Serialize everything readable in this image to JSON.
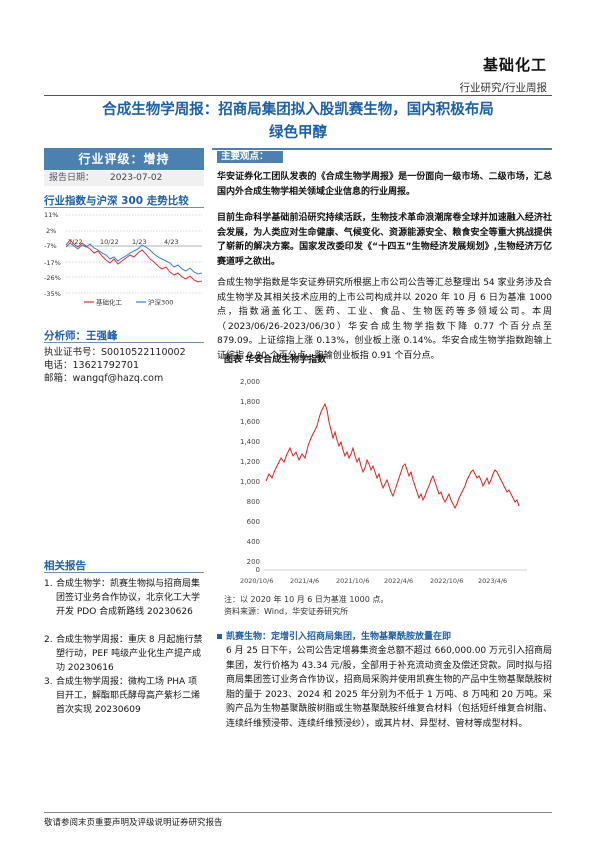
{
  "header": {
    "sector": "基础化工",
    "category": "行业研究/行业周报"
  },
  "title_line1": "合成生物学周报：招商局集团拟入股凯赛生物，国内积极布局",
  "title_line2": "绿色甲醇",
  "rating": "行业评级：增持",
  "report_date_label": "报告日期：",
  "report_date": "2023-07-02",
  "index_chart": {
    "title": "行业指数与沪深 300 走势比较",
    "yticks": [
      "11%",
      "2%",
      "-7%",
      "-17%",
      "-26%",
      "-35%"
    ],
    "xticks": [
      "7/22",
      "10/22",
      "1/23",
      "4/23"
    ],
    "legend": [
      "基础化工",
      "沪深300"
    ],
    "colors": {
      "sector": "#e03030",
      "hs300": "#3a7fd0"
    }
  },
  "analyst": {
    "title": "分析师：王强峰",
    "cert_label": "执业证书号：",
    "cert": "S0010522110002",
    "phone_label": "电话：",
    "phone": "13621792701",
    "email_label": "邮箱：",
    "email": "wangqf@hazq.com"
  },
  "related": {
    "title": "相关报告",
    "items": [
      {
        "no": "1.",
        "text": "合成生物学：凯赛生物拟与招商局集团签订业务合作协议，北京化工大学开发 PDO 合成新路线 20230626"
      },
      {
        "no": "2.",
        "text": "合成生物学周报：重庆 8 月起施行禁塑行动，PEF 吨级产业化生产提产成功 20230616"
      },
      {
        "no": "3.",
        "text": "合成生物学周报：微构工场 PHA 项目开工，解酯耶氏酵母高产紫杉二烯首次实现 20230609"
      }
    ]
  },
  "main_points_label": "主要观点：",
  "para1": "华安证券化工团队发表的《合成生物学周报》是一份面向一级市场、二级市场，汇总国内外合成生物学相关领域企业信息的行业周报。",
  "para2": "目前生命科学基础前沿研究持续活跃，生物技术革命浪潮席卷全球并加速融入经济社会发展，为人类应对生命健康、气候变化、资源能源安全、粮食安全等重大挑战提供了崭新的解决方案。国家发改委印发《“十四五”生物经济发展规划》,生物经济万亿赛道呼之欲出。",
  "para3": "合成生物学指数是华安证券研究所根据上市公司公告等汇总整理出 54 家业务涉及合成生物学及其相关技术应用的上市公司构成并以 2020 年 10 月 6 日为基准 1000 点，指数涵盖化工、医药、工业、食品、生物医药等多领域公司。本周（2023/06/26-2023/06/30）华安合成生物学指数下降 0.77 个百分点至 879.09。上证综指上涨 0.13%，创业板上涨 0.14%。华安合成生物学指数跑输上证综指 0.90 个百分点，跑输创业板指 0.91 个百分点。",
  "figure": {
    "title": "图表 华安合成生物学指数",
    "yticks": [
      "2,000",
      "1,800",
      "1,600",
      "1,400",
      "1,200",
      "1,000",
      "800",
      "600",
      "400",
      "200",
      "0"
    ],
    "xticks": [
      "2020/10/6",
      "2021/4/6",
      "2021/10/6",
      "2022/4/6",
      "2022/10/6",
      "2023/4/6"
    ],
    "note": "注：以 2020 年 10 月 6 日为基准 1000 点。",
    "source": "资料来源：Wind，华安证券研究所",
    "color": "#e02020"
  },
  "bullet": {
    "title": "凯赛生物：定增引入招商局集团，生物基聚酰胺放量在即",
    "text": "6 月 25 日下午，公司公告定增募集资金总额不超过 660,000.00 万元引入招商局集团，发行价格为 43.34 元/股，全部用于补充流动资金及偿还贷款。同时拟与招商局集团签订业务合作协议，招商局采购并使用凯赛生物的产品中生物基聚酰胺树脂的量于 2023、2024 和 2025 年分别为不低于 1 万吨、8 万吨和 20 万吨。采购产品为生物基聚酰胺树脂或生物基聚酰胺纤维复合材料（包括短纤维复合树脂、连续纤维预浸带、连续纤维预浸纱），或其片材、异型材、管材等成型材料。"
  },
  "footer": "敬请参阅末页重要声明及评级说明证券研究报告"
}
